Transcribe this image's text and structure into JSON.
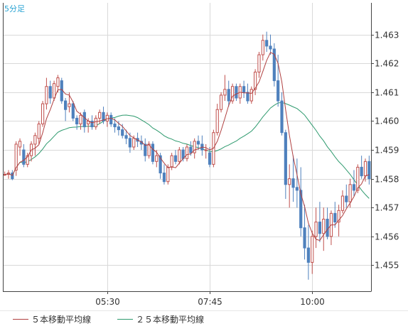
{
  "chart_data": {
    "type": "candlestick",
    "timeframe_label": "5分足",
    "y_ticks": [
      1.455,
      1.456,
      1.457,
      1.458,
      1.459,
      1.46,
      1.461,
      1.462,
      1.463
    ],
    "y_range": [
      1.4541,
      1.4641
    ],
    "x_ticks": [
      {
        "label": "05:30",
        "index": 27
      },
      {
        "label": "07:45",
        "index": 54
      },
      {
        "label": "10:00",
        "index": 81
      }
    ],
    "colors": {
      "up": "#c0504d",
      "down": "#4f81bd",
      "ma5": "#b04040",
      "ma25": "#2e9a6e",
      "grid": "#d9d9d9",
      "axis": "#444444",
      "label": "#29a3d3"
    },
    "candles": [
      [
        1.45815,
        1.45825,
        1.4581,
        1.45815
      ],
      [
        1.45815,
        1.4583,
        1.458,
        1.4582
      ],
      [
        1.4582,
        1.4583,
        1.45795,
        1.458
      ],
      [
        1.4583,
        1.4593,
        1.4581,
        1.4592
      ],
      [
        1.4591,
        1.4594,
        1.4588,
        1.4593
      ],
      [
        1.459,
        1.4592,
        1.4584,
        1.4585
      ],
      [
        1.4585,
        1.4589,
        1.4584,
        1.4588
      ],
      [
        1.4588,
        1.4593,
        1.4586,
        1.4592
      ],
      [
        1.4592,
        1.4596,
        1.4588,
        1.4595
      ],
      [
        1.4594,
        1.46,
        1.4592,
        1.4599
      ],
      [
        1.4599,
        1.4607,
        1.4598,
        1.4606
      ],
      [
        1.4606,
        1.4615,
        1.4604,
        1.4612
      ],
      [
        1.4612,
        1.4614,
        1.4606,
        1.4608
      ],
      [
        1.4608,
        1.4614,
        1.4607,
        1.4613
      ],
      [
        1.4612,
        1.4616,
        1.461,
        1.4615
      ],
      [
        1.4614,
        1.4615,
        1.4606,
        1.4607
      ],
      [
        1.4607,
        1.4608,
        1.46,
        1.4604
      ],
      [
        1.4605,
        1.461,
        1.4603,
        1.4606
      ],
      [
        1.4606,
        1.4607,
        1.46,
        1.4601
      ],
      [
        1.4601,
        1.4602,
        1.4597,
        1.4599
      ],
      [
        1.4599,
        1.4603,
        1.4597,
        1.4602
      ],
      [
        1.4603,
        1.4604,
        1.4596,
        1.4598
      ],
      [
        1.4599,
        1.4601,
        1.4596,
        1.46
      ],
      [
        1.46,
        1.4602,
        1.4597,
        1.4598
      ],
      [
        1.4598,
        1.4602,
        1.4597,
        1.4601
      ],
      [
        1.4601,
        1.4604,
        1.4599,
        1.4603
      ],
      [
        1.4603,
        1.4605,
        1.4599,
        1.46
      ],
      [
        1.46,
        1.4603,
        1.4598,
        1.4602
      ],
      [
        1.4602,
        1.4603,
        1.4598,
        1.4599
      ],
      [
        1.4599,
        1.4601,
        1.4596,
        1.4598
      ],
      [
        1.4598,
        1.46,
        1.4595,
        1.4597
      ],
      [
        1.4597,
        1.4599,
        1.4594,
        1.4595
      ],
      [
        1.4595,
        1.4597,
        1.4592,
        1.4594
      ],
      [
        1.4594,
        1.4596,
        1.4589,
        1.4591
      ],
      [
        1.4591,
        1.4595,
        1.459,
        1.4594
      ],
      [
        1.4594,
        1.4596,
        1.4591,
        1.4593
      ],
      [
        1.4593,
        1.4595,
        1.459,
        1.4592
      ],
      [
        1.4592,
        1.4594,
        1.4586,
        1.4588
      ],
      [
        1.4588,
        1.4593,
        1.4587,
        1.4592
      ],
      [
        1.4592,
        1.4593,
        1.4585,
        1.4586
      ],
      [
        1.4586,
        1.459,
        1.4584,
        1.4588
      ],
      [
        1.4588,
        1.4589,
        1.458,
        1.4582
      ],
      [
        1.4582,
        1.4585,
        1.4578,
        1.4579
      ],
      [
        1.4579,
        1.4585,
        1.4578,
        1.4584
      ],
      [
        1.4584,
        1.4589,
        1.4583,
        1.4588
      ],
      [
        1.4588,
        1.459,
        1.4585,
        1.4586
      ],
      [
        1.4586,
        1.4591,
        1.4585,
        1.459
      ],
      [
        1.459,
        1.4591,
        1.4586,
        1.4587
      ],
      [
        1.4587,
        1.4592,
        1.4586,
        1.4591
      ],
      [
        1.4591,
        1.4593,
        1.4588,
        1.4589
      ],
      [
        1.4589,
        1.4594,
        1.4587,
        1.4593
      ],
      [
        1.4593,
        1.4595,
        1.459,
        1.4592
      ],
      [
        1.4592,
        1.4595,
        1.4588,
        1.459
      ],
      [
        1.459,
        1.4592,
        1.4587,
        1.459
      ],
      [
        1.4589,
        1.4591,
        1.4584,
        1.4585
      ],
      [
        1.4585,
        1.4597,
        1.4584,
        1.4596
      ],
      [
        1.4596,
        1.4606,
        1.4595,
        1.4604
      ],
      [
        1.4604,
        1.461,
        1.4603,
        1.4609
      ],
      [
        1.4609,
        1.4616,
        1.4607,
        1.4611
      ],
      [
        1.4611,
        1.4614,
        1.4605,
        1.4607
      ],
      [
        1.4607,
        1.4613,
        1.4606,
        1.4612
      ],
      [
        1.4612,
        1.4613,
        1.4607,
        1.4608
      ],
      [
        1.4608,
        1.4613,
        1.4606,
        1.4612
      ],
      [
        1.4612,
        1.4614,
        1.4608,
        1.461
      ],
      [
        1.461,
        1.4613,
        1.4606,
        1.4607
      ],
      [
        1.4607,
        1.4612,
        1.4606,
        1.4611
      ],
      [
        1.4611,
        1.4618,
        1.4609,
        1.4617
      ],
      [
        1.4617,
        1.4624,
        1.4615,
        1.4623
      ],
      [
        1.4623,
        1.463,
        1.4621,
        1.4628
      ],
      [
        1.4628,
        1.4631,
        1.4624,
        1.4626
      ],
      [
        1.4626,
        1.463,
        1.4623,
        1.4625
      ],
      [
        1.4625,
        1.4627,
        1.4612,
        1.4614
      ],
      [
        1.4614,
        1.4623,
        1.4605,
        1.4607
      ],
      [
        1.4607,
        1.461,
        1.4595,
        1.4596
      ],
      [
        1.4596,
        1.4597,
        1.4573,
        1.4578
      ],
      [
        1.4578,
        1.4585,
        1.457,
        1.458
      ],
      [
        1.458,
        1.4588,
        1.4572,
        1.4577
      ],
      [
        1.4577,
        1.4587,
        1.457,
        1.4576
      ],
      [
        1.4576,
        1.4584,
        1.456,
        1.4563
      ],
      [
        1.4563,
        1.4571,
        1.4552,
        1.4556
      ],
      [
        1.4556,
        1.4564,
        1.4545,
        1.4551
      ],
      [
        1.4551,
        1.4562,
        1.4547,
        1.456
      ],
      [
        1.456,
        1.457,
        1.4556,
        1.4565
      ],
      [
        1.4565,
        1.4572,
        1.4558,
        1.4561
      ],
      [
        1.4561,
        1.457,
        1.4555,
        1.4566
      ],
      [
        1.4566,
        1.457,
        1.4559,
        1.456
      ],
      [
        1.456,
        1.4569,
        1.4557,
        1.4568
      ],
      [
        1.4568,
        1.4572,
        1.4563,
        1.4565
      ],
      [
        1.4565,
        1.4571,
        1.456,
        1.4569
      ],
      [
        1.4569,
        1.4576,
        1.4568,
        1.4574
      ],
      [
        1.4574,
        1.4578,
        1.457,
        1.4572
      ],
      [
        1.4572,
        1.458,
        1.457,
        1.4578
      ],
      [
        1.4578,
        1.4583,
        1.4574,
        1.4576
      ],
      [
        1.4576,
        1.4585,
        1.4575,
        1.4584
      ],
      [
        1.4584,
        1.4588,
        1.458,
        1.4581
      ],
      [
        1.4581,
        1.4587,
        1.4579,
        1.4586
      ],
      [
        1.4586,
        1.4588,
        1.4578,
        1.458
      ]
    ],
    "legend": [
      {
        "label": "５本移動平均線",
        "color_key": "ma5"
      },
      {
        "label": "２５本移動平均線",
        "color_key": "ma25"
      }
    ]
  }
}
